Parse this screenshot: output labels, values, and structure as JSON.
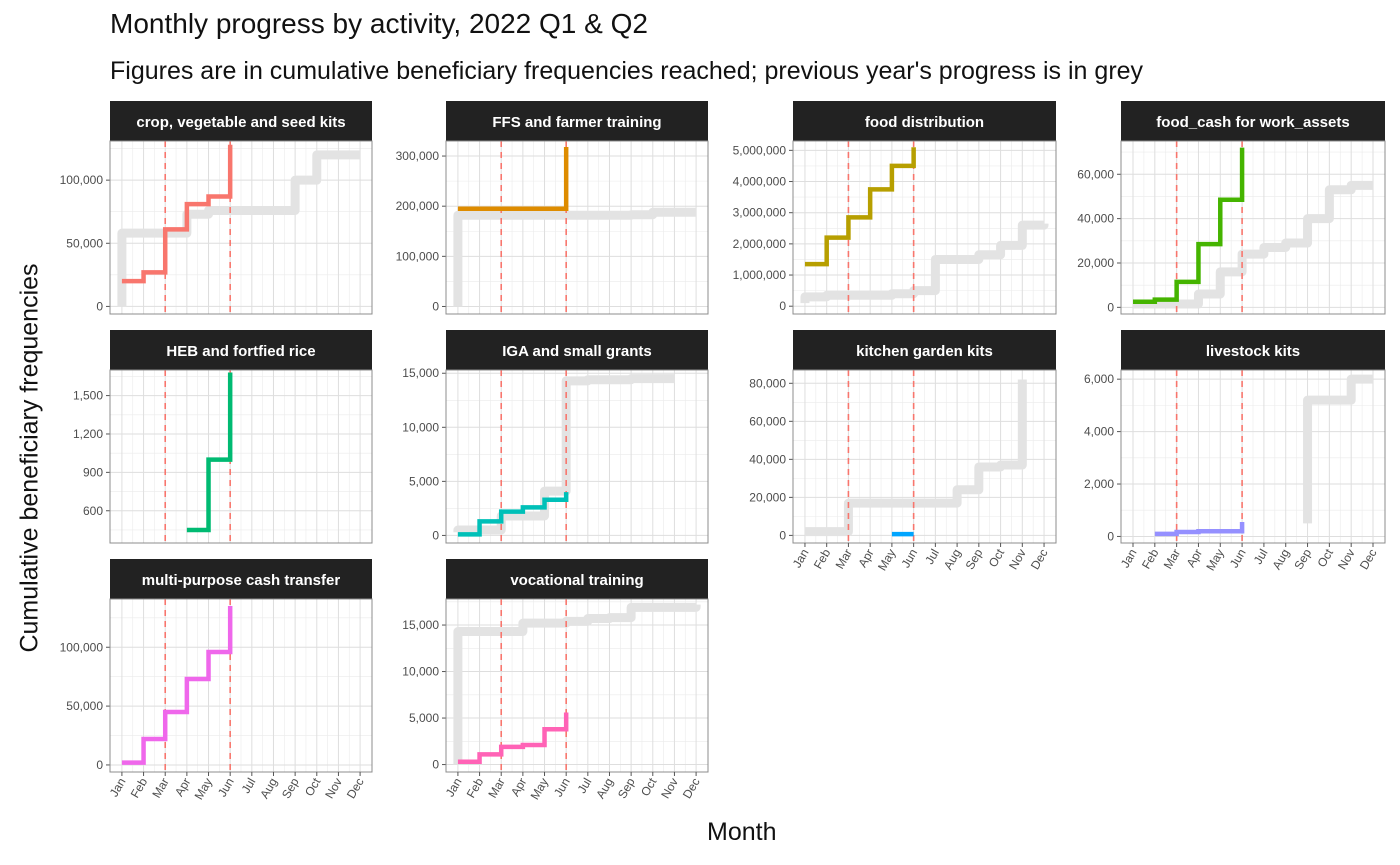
{
  "title": "Monthly progress by activity, 2022 Q1 & Q2",
  "subtitle": "Figures are in cumulative beneficiary frequencies reached; previous year's progress is in grey",
  "xlabel": "Month",
  "ylabel": "Cumulative beneficiary frequencies",
  "chart_data": {
    "type": "line",
    "style": "step",
    "layout": "facet grid, 4 columns, 3 rows",
    "months": [
      "Jan",
      "Feb",
      "Mar",
      "Apr",
      "May",
      "Jun",
      "Jul",
      "Aug",
      "Sep",
      "Oct",
      "Nov",
      "Dec"
    ],
    "reference_lines": {
      "months": [
        "Mar",
        "Jun"
      ],
      "color": "#F8766D",
      "style": "dashed"
    },
    "previous_year_color": "#E3E3E3",
    "grid": true,
    "panels": [
      {
        "title": "crop, vegetable and seed kits",
        "color": "#F8766D",
        "x_axis_labels": false,
        "yticks": [
          0,
          50000,
          100000
        ],
        "ytick_labels": [
          "0",
          "50,000",
          "100,000"
        ],
        "ylim": [
          -6000,
          131000
        ],
        "current": [
          [
            1,
            20000
          ],
          [
            2,
            27000
          ],
          [
            3,
            61000
          ],
          [
            4,
            81000
          ],
          [
            5,
            87000
          ],
          [
            6,
            87000
          ],
          [
            6,
            128000
          ]
        ],
        "previous": [
          [
            1,
            0
          ],
          [
            1,
            58000
          ],
          [
            3,
            58000
          ],
          [
            4,
            73000
          ],
          [
            5,
            76000
          ],
          [
            9,
            76000
          ],
          [
            9,
            100000
          ],
          [
            10,
            100000
          ],
          [
            10,
            120000
          ],
          [
            12,
            120000
          ]
        ]
      },
      {
        "title": "FFS and farmer training",
        "color": "#DE8C00",
        "x_axis_labels": false,
        "yticks": [
          0,
          100000,
          200000,
          300000
        ],
        "ytick_labels": [
          "0",
          "100,000",
          "200,000",
          "300,000"
        ],
        "ylim": [
          -15000,
          330000
        ],
        "current": [
          [
            1,
            195000
          ],
          [
            6,
            195000
          ],
          [
            6,
            318000
          ]
        ],
        "previous": [
          [
            1,
            0
          ],
          [
            1,
            182000
          ],
          [
            9,
            183000
          ],
          [
            10,
            188000
          ],
          [
            12,
            188000
          ]
        ]
      },
      {
        "title": "food distribution",
        "color": "#B79F00",
        "x_axis_labels": false,
        "yticks": [
          0,
          1000000,
          2000000,
          3000000,
          4000000,
          5000000
        ],
        "ytick_labels": [
          "0",
          "1,000,000",
          "2,000,000",
          "3,000,000",
          "4,000,000",
          "5,000,000"
        ],
        "ylim": [
          -250000,
          5300000
        ],
        "current": [
          [
            1,
            1350000
          ],
          [
            2,
            2200000
          ],
          [
            3,
            2850000
          ],
          [
            4,
            3750000
          ],
          [
            5,
            4500000
          ],
          [
            6,
            4500000
          ],
          [
            6,
            5100000
          ]
        ],
        "previous": [
          [
            1,
            100000
          ],
          [
            1,
            300000
          ],
          [
            2,
            350000
          ],
          [
            5,
            400000
          ],
          [
            6,
            500000
          ],
          [
            7,
            600000
          ],
          [
            7,
            1500000
          ],
          [
            9,
            1650000
          ],
          [
            10,
            1950000
          ],
          [
            11,
            2050000
          ],
          [
            11,
            2600000
          ],
          [
            12,
            2650000
          ]
        ]
      },
      {
        "title": "food_cash for work_assets",
        "color": "#45B400",
        "x_axis_labels": false,
        "yticks": [
          0,
          20000,
          40000,
          60000
        ],
        "ytick_labels": [
          "0",
          "20,000",
          "40,000",
          "60,000"
        ],
        "ylim": [
          -3000,
          75000
        ],
        "current": [
          [
            1,
            2500
          ],
          [
            2,
            3500
          ],
          [
            3,
            11500
          ],
          [
            4,
            28500
          ],
          [
            5,
            48500
          ],
          [
            6,
            48500
          ],
          [
            6,
            72000
          ]
        ],
        "previous": [
          [
            1,
            1500
          ],
          [
            3,
            1500
          ],
          [
            4,
            6000
          ],
          [
            5,
            16000
          ],
          [
            6,
            24000
          ],
          [
            7,
            27000
          ],
          [
            8,
            29000
          ],
          [
            9,
            40000
          ],
          [
            10,
            53000
          ],
          [
            11,
            55000
          ],
          [
            12,
            55000
          ]
        ]
      },
      {
        "title": "HEB and fortfied rice",
        "color": "#00BA72",
        "x_axis_labels": false,
        "yticks": [
          600,
          900,
          1200,
          1500
        ],
        "ytick_labels": [
          "600",
          "900",
          "1,200",
          "1,500"
        ],
        "ylim": [
          348,
          1700
        ],
        "current": [
          [
            4,
            450
          ],
          [
            5,
            450
          ],
          [
            5,
            1000
          ],
          [
            6,
            1000
          ],
          [
            6,
            1680
          ]
        ],
        "previous": []
      },
      {
        "title": "IGA and small grants",
        "color": "#00C0B8",
        "x_axis_labels": false,
        "yticks": [
          0,
          5000,
          10000,
          15000
        ],
        "ytick_labels": [
          "0",
          "5,000",
          "10,000",
          "15,000"
        ],
        "ylim": [
          -700,
          15300
        ],
        "current": [
          [
            1,
            100
          ],
          [
            2,
            1300
          ],
          [
            3,
            2200
          ],
          [
            4,
            2600
          ],
          [
            5,
            3300
          ],
          [
            6,
            3300
          ],
          [
            6,
            4000
          ]
        ],
        "previous": [
          [
            1,
            300
          ],
          [
            1,
            500
          ],
          [
            3,
            1800
          ],
          [
            5,
            4100
          ],
          [
            6,
            4200
          ],
          [
            6,
            14300
          ],
          [
            7,
            14400
          ],
          [
            9,
            14500
          ],
          [
            11,
            14500
          ]
        ]
      },
      {
        "title": "kitchen garden kits",
        "color": "#00A5FF",
        "x_axis_labels": true,
        "yticks": [
          0,
          20000,
          40000,
          60000,
          80000
        ],
        "ytick_labels": [
          "0",
          "20,000",
          "40,000",
          "60,000",
          "80,000"
        ],
        "ylim": [
          -4000,
          87000
        ],
        "current": [
          [
            5,
            700
          ],
          [
            6,
            700
          ]
        ],
        "previous": [
          [
            1,
            2000
          ],
          [
            3,
            2000
          ],
          [
            3,
            17000
          ],
          [
            7,
            17000
          ],
          [
            8,
            24000
          ],
          [
            9,
            36000
          ],
          [
            10,
            37000
          ],
          [
            11,
            63000
          ],
          [
            11,
            82000
          ]
        ]
      },
      {
        "title": "livestock kits",
        "color": "#9590FF",
        "x_axis_labels": true,
        "yticks": [
          0,
          2000,
          4000,
          6000
        ],
        "ytick_labels": [
          "0",
          "2,000",
          "4,000",
          "6,000"
        ],
        "ylim": [
          -250,
          6350
        ],
        "current": [
          [
            2,
            100
          ],
          [
            3,
            170
          ],
          [
            4,
            200
          ],
          [
            5,
            200
          ],
          [
            6,
            200
          ],
          [
            6,
            550
          ]
        ],
        "previous": [
          [
            9,
            500
          ],
          [
            9,
            5200
          ],
          [
            11,
            5200
          ],
          [
            11,
            6000
          ],
          [
            12,
            6000
          ]
        ]
      },
      {
        "title": "multi-purpose cash transfer",
        "color": "#EF67EB",
        "x_axis_labels": true,
        "yticks": [
          0,
          50000,
          100000
        ],
        "ytick_labels": [
          "0",
          "50,000",
          "100,000"
        ],
        "ylim": [
          -6000,
          141000
        ],
        "current": [
          [
            1,
            2000
          ],
          [
            2,
            22000
          ],
          [
            3,
            45000
          ],
          [
            4,
            73000
          ],
          [
            5,
            96000
          ],
          [
            6,
            96000
          ],
          [
            6,
            135000
          ]
        ],
        "previous": []
      },
      {
        "title": "vocational training",
        "color": "#FF63B6",
        "x_axis_labels": true,
        "yticks": [
          0,
          5000,
          10000,
          15000
        ],
        "ytick_labels": [
          "0",
          "5,000",
          "10,000",
          "15,000"
        ],
        "ylim": [
          -800,
          17800
        ],
        "current": [
          [
            1,
            300
          ],
          [
            2,
            1100
          ],
          [
            3,
            1900
          ],
          [
            4,
            2100
          ],
          [
            5,
            3800
          ],
          [
            6,
            3800
          ],
          [
            6,
            5600
          ]
        ],
        "previous": [
          [
            1,
            0
          ],
          [
            1,
            14300
          ],
          [
            4,
            14400
          ],
          [
            4,
            15200
          ],
          [
            6,
            15400
          ],
          [
            7,
            15700
          ],
          [
            8,
            15800
          ],
          [
            9,
            16000
          ],
          [
            9,
            16900
          ],
          [
            12,
            17200
          ]
        ]
      }
    ]
  }
}
